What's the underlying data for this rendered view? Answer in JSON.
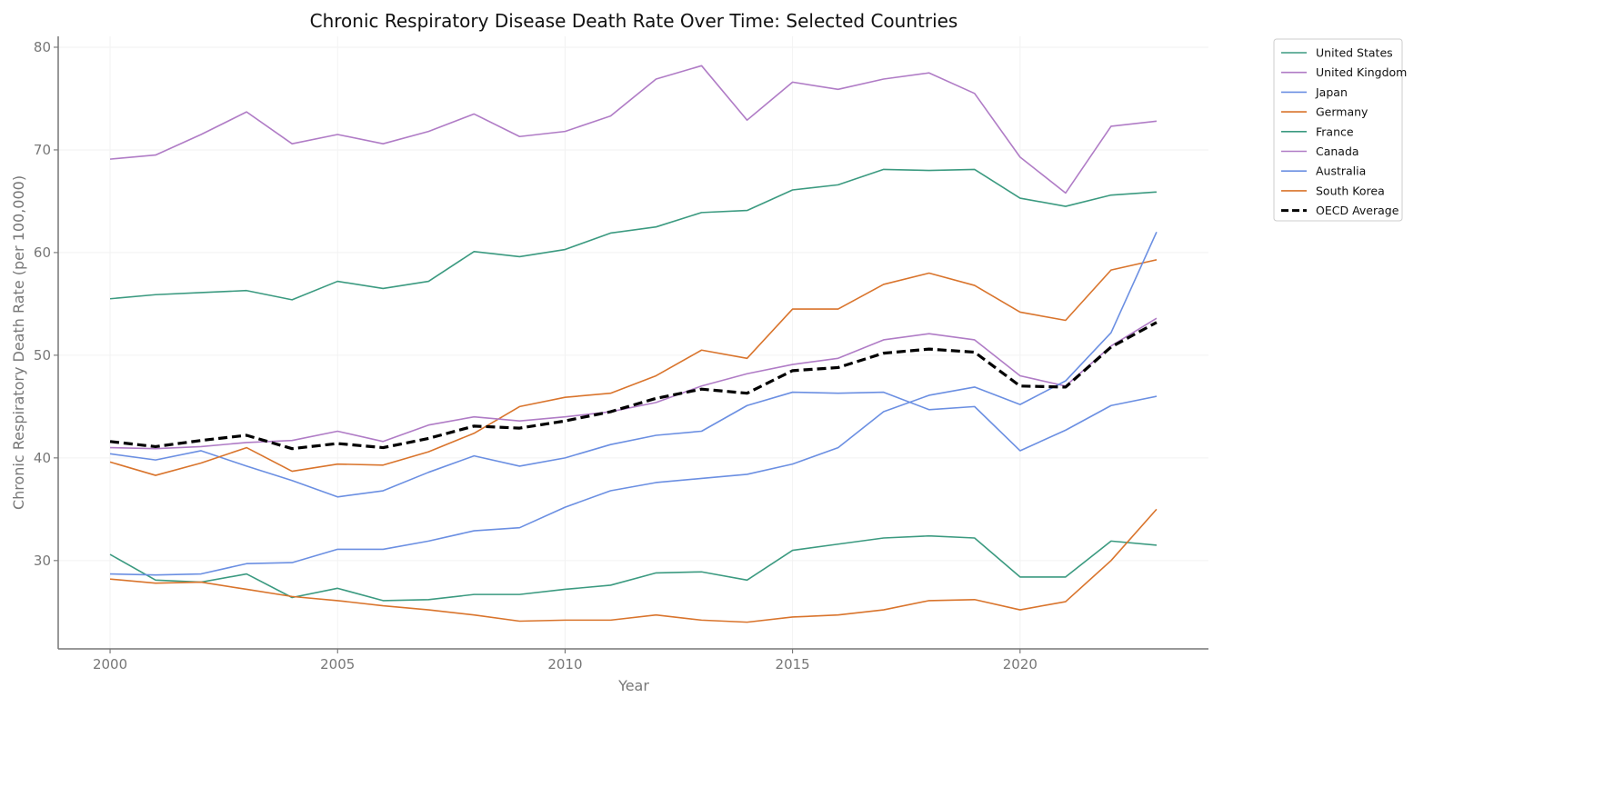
{
  "chart_data": {
    "type": "line",
    "title": "Chronic Respiratory Disease Death Rate Over Time: Selected Countries",
    "xlabel": "Year",
    "ylabel": "Chronic Respiratory Death Rate (per 100,000)",
    "xlim": [
      1998.86,
      2024.14
    ],
    "ylim": [
      21.4,
      81.06
    ],
    "xticks": [
      2000,
      2005,
      2010,
      2015,
      2020
    ],
    "yticks": [
      30,
      40,
      50,
      60,
      70,
      80
    ],
    "grid": true,
    "legend_placement": "outside-top-right",
    "x": [
      2000,
      2001,
      2002,
      2003,
      2004,
      2005,
      2006,
      2007,
      2008,
      2009,
      2010,
      2011,
      2012,
      2013,
      2014,
      2015,
      2016,
      2017,
      2018,
      2019,
      2020,
      2021,
      2022,
      2023
    ],
    "series": [
      {
        "name": "United States",
        "color": "#3b9a80",
        "dashed": false,
        "values": [
          55.5,
          55.9,
          56.1,
          56.3,
          55.4,
          57.2,
          56.5,
          57.2,
          60.1,
          59.6,
          60.3,
          61.9,
          62.5,
          63.9,
          64.1,
          66.1,
          66.6,
          68.1,
          68.0,
          68.1,
          65.3,
          64.5,
          65.6,
          65.9
        ]
      },
      {
        "name": "United Kingdom",
        "color": "#b07cc6",
        "dashed": false,
        "values": [
          69.1,
          69.5,
          71.5,
          73.7,
          70.6,
          71.5,
          70.6,
          71.8,
          73.5,
          71.3,
          71.8,
          73.3,
          76.9,
          78.2,
          72.9,
          76.6,
          75.9,
          76.9,
          77.5,
          75.5,
          69.3,
          65.8,
          72.3,
          72.8
        ]
      },
      {
        "name": "Japan",
        "color": "#6b8fe2",
        "dashed": false,
        "values": [
          40.4,
          39.8,
          40.7,
          39.2,
          37.8,
          36.2,
          36.8,
          38.6,
          40.2,
          39.2,
          40.0,
          41.3,
          42.2,
          42.6,
          45.1,
          46.4,
          46.3,
          46.4,
          44.7,
          45.0,
          40.7,
          42.7,
          45.1,
          46.0
        ]
      },
      {
        "name": "Germany",
        "color": "#d9742c",
        "dashed": false,
        "values": [
          39.6,
          38.3,
          39.5,
          41.0,
          38.7,
          39.4,
          39.3,
          40.6,
          42.4,
          45.0,
          45.9,
          46.3,
          48.0,
          50.5,
          49.7,
          54.5,
          54.5,
          56.9,
          58.0,
          56.8,
          54.2,
          53.4,
          58.3,
          59.3
        ]
      },
      {
        "name": "France",
        "color": "#3b9a80",
        "dashed": false,
        "values": [
          30.6,
          28.1,
          27.9,
          28.7,
          26.4,
          27.3,
          26.1,
          26.2,
          26.7,
          26.7,
          27.2,
          27.6,
          28.8,
          28.9,
          28.1,
          31.0,
          31.6,
          32.2,
          32.4,
          32.2,
          28.4,
          28.4,
          31.9,
          31.5
        ]
      },
      {
        "name": "Canada",
        "color": "#b07cc6",
        "dashed": false,
        "values": [
          41.0,
          40.9,
          41.1,
          41.5,
          41.7,
          42.6,
          41.6,
          43.2,
          44.0,
          43.6,
          44.0,
          44.5,
          45.4,
          47.0,
          48.2,
          49.1,
          49.7,
          51.5,
          52.1,
          51.5,
          48.0,
          47.0,
          50.9,
          53.6
        ]
      },
      {
        "name": "Australia",
        "color": "#6b8fe2",
        "dashed": false,
        "values": [
          28.7,
          28.6,
          28.7,
          29.7,
          29.8,
          31.1,
          31.1,
          31.9,
          32.9,
          33.2,
          35.2,
          36.8,
          37.6,
          38.0,
          38.4,
          39.4,
          41.0,
          44.5,
          46.1,
          46.9,
          45.2,
          47.5,
          52.2,
          62.0
        ]
      },
      {
        "name": "South Korea",
        "color": "#d9742c",
        "dashed": false,
        "values": [
          28.2,
          27.8,
          27.9,
          27.2,
          26.5,
          26.1,
          25.6,
          25.2,
          24.7,
          24.1,
          24.2,
          24.2,
          24.7,
          24.2,
          24.0,
          24.5,
          24.7,
          25.2,
          26.1,
          26.2,
          25.2,
          26.0,
          30.0,
          35.0
        ]
      },
      {
        "name": "OECD Average",
        "color": "#000000",
        "dashed": true,
        "values": [
          41.6,
          41.1,
          41.7,
          42.2,
          40.9,
          41.4,
          41.0,
          41.9,
          43.1,
          42.9,
          43.6,
          44.5,
          45.8,
          46.7,
          46.3,
          48.5,
          48.8,
          50.2,
          50.6,
          50.3,
          47.0,
          46.9,
          50.8,
          53.2
        ]
      }
    ]
  }
}
